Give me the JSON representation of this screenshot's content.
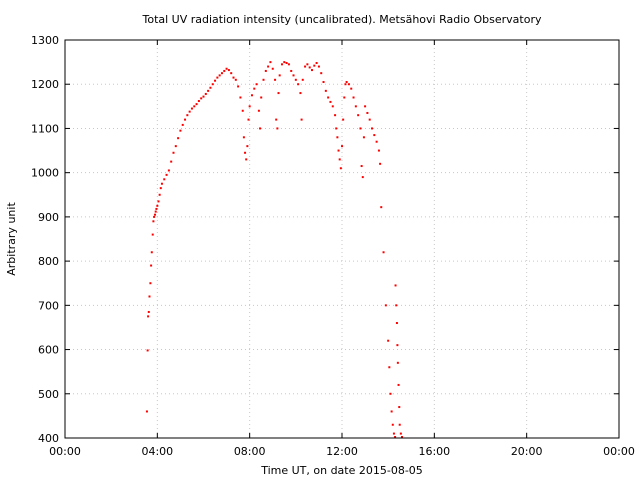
{
  "chart_data": {
    "type": "scatter",
    "title": "Total UV radiation intensity (uncalibrated). Metsähovi Radio Observatory",
    "xlabel": "Time UT, on date 2015-08-05",
    "ylabel": "Arbitrary unit",
    "xlim": [
      0,
      24
    ],
    "ylim": [
      400,
      1300
    ],
    "x_tick_values": [
      0,
      4,
      8,
      12,
      16,
      20,
      24
    ],
    "x_tick_labels": [
      "00:00",
      "04:00",
      "08:00",
      "12:00",
      "16:00",
      "20:00",
      "00:00"
    ],
    "y_ticks": [
      400,
      500,
      600,
      700,
      800,
      900,
      1000,
      1100,
      1200,
      1300
    ],
    "grid": true,
    "legend": "none",
    "series": [
      {
        "color": "#ff0000",
        "points": [
          [
            3.55,
            460
          ],
          [
            3.58,
            598
          ],
          [
            3.6,
            675
          ],
          [
            3.63,
            685
          ],
          [
            3.66,
            720
          ],
          [
            3.7,
            750
          ],
          [
            3.73,
            790
          ],
          [
            3.76,
            820
          ],
          [
            3.8,
            860
          ],
          [
            3.83,
            890
          ],
          [
            3.86,
            900
          ],
          [
            3.9,
            905
          ],
          [
            3.93,
            912
          ],
          [
            3.96,
            918
          ],
          [
            4.0,
            925
          ],
          [
            4.05,
            935
          ],
          [
            4.1,
            950
          ],
          [
            4.15,
            965
          ],
          [
            4.2,
            975
          ],
          [
            4.3,
            985
          ],
          [
            4.4,
            995
          ],
          [
            4.5,
            1005
          ],
          [
            4.6,
            1025
          ],
          [
            4.7,
            1045
          ],
          [
            4.8,
            1060
          ],
          [
            4.9,
            1078
          ],
          [
            5.0,
            1095
          ],
          [
            5.1,
            1108
          ],
          [
            5.2,
            1120
          ],
          [
            5.3,
            1130
          ],
          [
            5.4,
            1138
          ],
          [
            5.5,
            1145
          ],
          [
            5.6,
            1150
          ],
          [
            5.7,
            1155
          ],
          [
            5.8,
            1162
          ],
          [
            5.9,
            1168
          ],
          [
            6.0,
            1172
          ],
          [
            6.1,
            1178
          ],
          [
            6.2,
            1185
          ],
          [
            6.3,
            1192
          ],
          [
            6.4,
            1200
          ],
          [
            6.5,
            1208
          ],
          [
            6.6,
            1215
          ],
          [
            6.7,
            1220
          ],
          [
            6.8,
            1225
          ],
          [
            6.9,
            1230
          ],
          [
            7.0,
            1235
          ],
          [
            7.1,
            1232
          ],
          [
            7.2,
            1225
          ],
          [
            7.3,
            1215
          ],
          [
            7.4,
            1210
          ],
          [
            7.5,
            1195
          ],
          [
            7.6,
            1170
          ],
          [
            7.7,
            1140
          ],
          [
            7.75,
            1080
          ],
          [
            7.8,
            1045
          ],
          [
            7.85,
            1030
          ],
          [
            7.9,
            1060
          ],
          [
            7.95,
            1120
          ],
          [
            8.0,
            1150
          ],
          [
            8.1,
            1175
          ],
          [
            8.2,
            1190
          ],
          [
            8.3,
            1200
          ],
          [
            8.4,
            1140
          ],
          [
            8.45,
            1100
          ],
          [
            8.5,
            1170
          ],
          [
            8.6,
            1210
          ],
          [
            8.7,
            1230
          ],
          [
            8.8,
            1240
          ],
          [
            8.9,
            1250
          ],
          [
            9.0,
            1235
          ],
          [
            9.1,
            1210
          ],
          [
            9.15,
            1120
          ],
          [
            9.2,
            1100
          ],
          [
            9.25,
            1180
          ],
          [
            9.3,
            1220
          ],
          [
            9.4,
            1245
          ],
          [
            9.5,
            1250
          ],
          [
            9.6,
            1248
          ],
          [
            9.7,
            1245
          ],
          [
            9.8,
            1230
          ],
          [
            9.9,
            1220
          ],
          [
            10.0,
            1210
          ],
          [
            10.1,
            1200
          ],
          [
            10.2,
            1180
          ],
          [
            10.25,
            1120
          ],
          [
            10.3,
            1210
          ],
          [
            10.4,
            1240
          ],
          [
            10.5,
            1245
          ],
          [
            10.6,
            1238
          ],
          [
            10.7,
            1232
          ],
          [
            10.8,
            1242
          ],
          [
            10.9,
            1248
          ],
          [
            11.0,
            1240
          ],
          [
            11.1,
            1225
          ],
          [
            11.2,
            1205
          ],
          [
            11.3,
            1185
          ],
          [
            11.4,
            1170
          ],
          [
            11.5,
            1160
          ],
          [
            11.6,
            1150
          ],
          [
            11.7,
            1130
          ],
          [
            11.75,
            1100
          ],
          [
            11.8,
            1080
          ],
          [
            11.85,
            1050
          ],
          [
            11.9,
            1030
          ],
          [
            11.95,
            1010
          ],
          [
            12.0,
            1060
          ],
          [
            12.05,
            1120
          ],
          [
            12.1,
            1170
          ],
          [
            12.15,
            1200
          ],
          [
            12.2,
            1205
          ],
          [
            12.3,
            1200
          ],
          [
            12.4,
            1190
          ],
          [
            12.5,
            1170
          ],
          [
            12.6,
            1150
          ],
          [
            12.7,
            1130
          ],
          [
            12.8,
            1100
          ],
          [
            12.85,
            1015
          ],
          [
            12.9,
            990
          ],
          [
            12.95,
            1080
          ],
          [
            13.0,
            1150
          ],
          [
            13.1,
            1135
          ],
          [
            13.2,
            1120
          ],
          [
            13.3,
            1100
          ],
          [
            13.4,
            1085
          ],
          [
            13.5,
            1070
          ],
          [
            13.6,
            1050
          ],
          [
            13.65,
            1020
          ],
          [
            13.7,
            922
          ],
          [
            13.8,
            820
          ],
          [
            13.9,
            700
          ],
          [
            14.0,
            620
          ],
          [
            14.05,
            560
          ],
          [
            14.1,
            500
          ],
          [
            14.15,
            460
          ],
          [
            14.2,
            430
          ],
          [
            14.25,
            410
          ],
          [
            14.3,
            400
          ],
          [
            14.32,
            745
          ],
          [
            14.35,
            700
          ],
          [
            14.38,
            660
          ],
          [
            14.4,
            610
          ],
          [
            14.42,
            570
          ],
          [
            14.45,
            520
          ],
          [
            14.48,
            470
          ],
          [
            14.5,
            430
          ],
          [
            14.55,
            410
          ],
          [
            14.6,
            400
          ]
        ]
      }
    ]
  }
}
